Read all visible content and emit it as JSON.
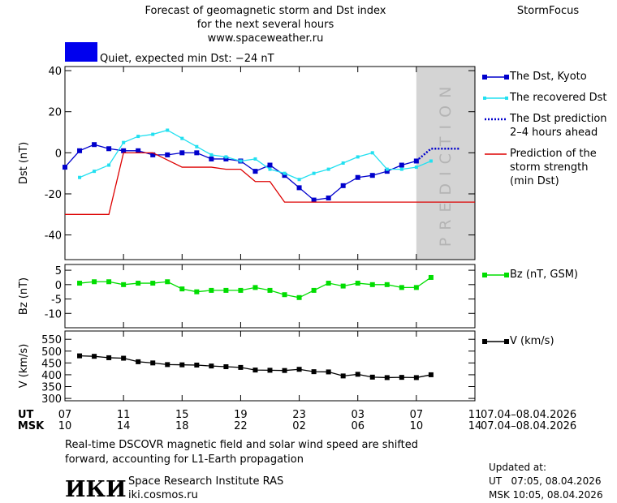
{
  "header": {
    "title_lines": [
      "Forecast of geomagnetic storm and Dst index",
      "for the next several hours",
      "www.spaceweather.ru"
    ],
    "brand": "StormFocus"
  },
  "chart_data": [
    {
      "type": "line",
      "ylabel": "Dst (nT)",
      "status_label": "Quiet, expected min Dst: −24 nT",
      "status_color": "#0000ee",
      "xlim": [
        0,
        28
      ],
      "ylim": [
        -52,
        42
      ],
      "yticks": [
        40,
        20,
        0,
        -20,
        -40
      ],
      "prediction_region": {
        "label": "PREDICTION",
        "xlim": [
          24,
          28
        ],
        "color": "#d4d4d4"
      },
      "series": [
        {
          "name": "The Dst, Kyoto",
          "color": "#0000cc",
          "marker": "square",
          "x": [
            0,
            1,
            2,
            3,
            4,
            5,
            6,
            7,
            8,
            9,
            10,
            11,
            12,
            13,
            14,
            15,
            16,
            17,
            18,
            19,
            20,
            21,
            22,
            23,
            24
          ],
          "values": [
            -7,
            1,
            4,
            2,
            1,
            1,
            -1,
            -1,
            0,
            0,
            -3,
            -3,
            -4,
            -9,
            -6,
            -11,
            -17,
            -23,
            -22,
            -16,
            -12,
            -11,
            -9,
            -6,
            -4
          ]
        },
        {
          "name": "The recovered Dst",
          "color": "#22e0f0",
          "marker": "small-square",
          "x": [
            1,
            2,
            3,
            4,
            5,
            6,
            7,
            8,
            9,
            10,
            11,
            12,
            13,
            14,
            15,
            16,
            17,
            18,
            19,
            20,
            21,
            22,
            23,
            24,
            25
          ],
          "values": [
            -12,
            -9,
            -6,
            5,
            8,
            9,
            11,
            7,
            3,
            -1,
            -2,
            -4,
            -3,
            -8,
            -10,
            -13,
            -10,
            -8,
            -5,
            -2,
            0,
            -8,
            -8,
            -7,
            -4
          ]
        },
        {
          "name": "The Dst prediction\n2–4 hours ahead",
          "color": "#0000cc",
          "style": "dotted",
          "x": [
            24,
            25,
            26,
            27
          ],
          "values": [
            -4,
            2,
            2,
            2
          ]
        },
        {
          "name": "Prediction of the\nstorm strength\n(min Dst)",
          "color": "#dd0000",
          "x": [
            0,
            3,
            4,
            6,
            8,
            10,
            11,
            12,
            13,
            14,
            15,
            28
          ],
          "values": [
            -30,
            -30,
            0,
            0,
            -7,
            -7,
            -8,
            -8,
            -14,
            -14,
            -24,
            -24
          ]
        }
      ]
    },
    {
      "type": "line",
      "ylabel": "Bz (nT)",
      "xlim": [
        0,
        28
      ],
      "ylim": [
        -15,
        7
      ],
      "yticks": [
        5,
        0,
        -5,
        -10
      ],
      "series": [
        {
          "name": "Bz (nT, GSM)",
          "color": "#00dd00",
          "marker": "square",
          "x": [
            1,
            2,
            3,
            4,
            5,
            6,
            7,
            8,
            9,
            10,
            11,
            12,
            13,
            14,
            15,
            16,
            17,
            18,
            19,
            20,
            21,
            22,
            23,
            24,
            25
          ],
          "values": [
            0.5,
            1,
            1,
            0,
            0.5,
            0.5,
            1,
            -1.5,
            -2.5,
            -2,
            -2,
            -2,
            -1,
            -2,
            -3.5,
            -4.5,
            -2,
            0.5,
            -0.5,
            0.5,
            0,
            0,
            -1,
            -1,
            2.5
          ]
        }
      ]
    },
    {
      "type": "line",
      "ylabel": "V (km/s)",
      "xlim": [
        0,
        28
      ],
      "ylim": [
        290,
        585
      ],
      "yticks": [
        550,
        500,
        450,
        400,
        350,
        300
      ],
      "xlabel": "UT",
      "x2label": "MSK",
      "date_range": "07.04–08.04.2026",
      "xticks": [
        {
          "value": 0,
          "label": "07"
        },
        {
          "value": 4,
          "label": "11"
        },
        {
          "value": 8,
          "label": "15"
        },
        {
          "value": 12,
          "label": "19"
        },
        {
          "value": 16,
          "label": "23"
        },
        {
          "value": 20,
          "label": "03"
        },
        {
          "value": 24,
          "label": "07"
        },
        {
          "value": 28,
          "label": "11"
        }
      ],
      "xticks_msk": [
        "10",
        "14",
        "18",
        "22",
        "02",
        "06",
        "10",
        "14"
      ],
      "series": [
        {
          "name": "V (km/s)",
          "color": "#000000",
          "marker": "square",
          "x": [
            1,
            2,
            3,
            4,
            5,
            6,
            7,
            8,
            9,
            10,
            11,
            12,
            13,
            14,
            15,
            16,
            17,
            18,
            19,
            20,
            21,
            22,
            23,
            24,
            25
          ],
          "values": [
            480,
            478,
            472,
            470,
            455,
            450,
            443,
            442,
            441,
            437,
            434,
            431,
            420,
            419,
            418,
            423,
            413,
            412,
            395,
            402,
            390,
            388,
            389,
            388,
            400
          ]
        }
      ]
    }
  ],
  "footer": {
    "note_lines": [
      "Real-time DSCOVR magnetic field and solar wind speed are shifted",
      "forward, accounting for L1-Earth propagation"
    ],
    "logo": "ИКИ",
    "institute": "Space Research Institute RAS",
    "site": "iki.cosmos.ru",
    "updated_lines": [
      "Updated at:",
      "UT   07:05, 08.04.2026",
      "MSK 10:05, 08.04.2026"
    ]
  }
}
